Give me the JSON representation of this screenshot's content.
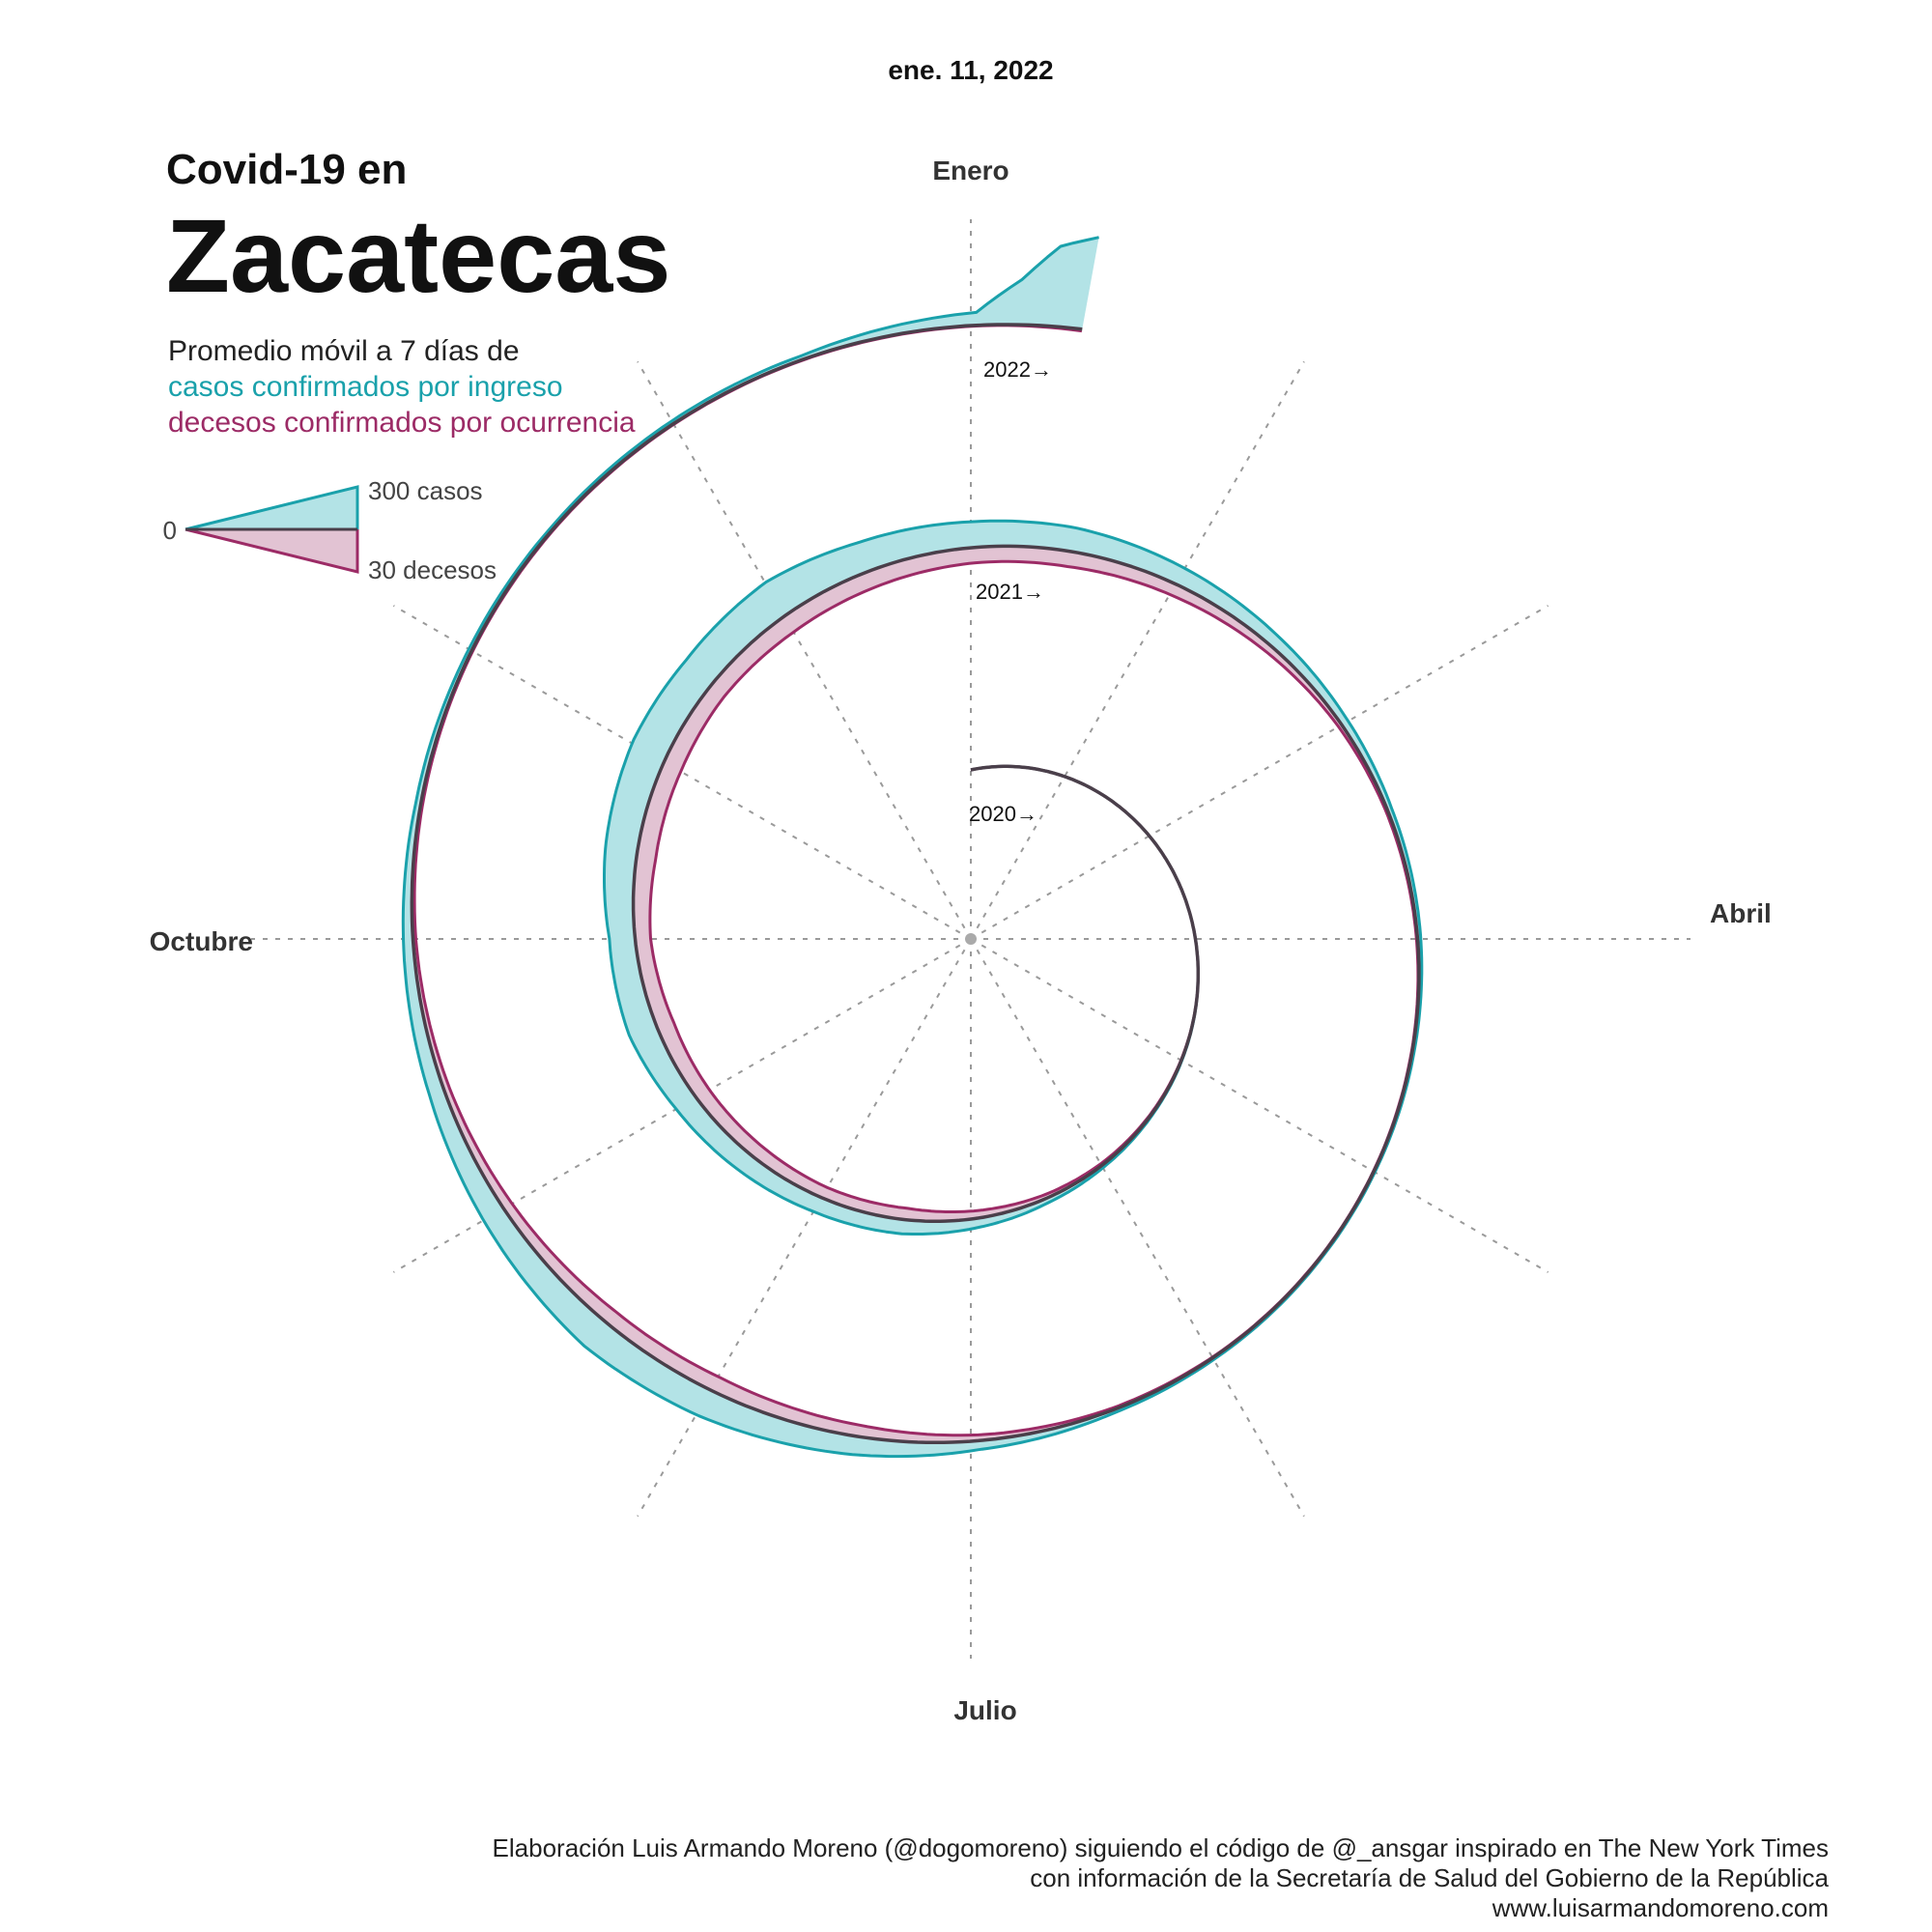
{
  "header": {
    "date": "ene. 11, 2022",
    "title_prefix": "Covid-19 en",
    "title_state": "Zacatecas",
    "subtitle": "Promedio móvil a 7 días de",
    "subtitle_cases": "casos confirmados por ingreso",
    "subtitle_deaths": "decesos confirmados por ocurrencia"
  },
  "legend": {
    "zero": "0",
    "cases": "300 casos",
    "deaths": "30 decesos"
  },
  "credits": {
    "line1": "Elaboración Luis Armando Moreno (@dogomoreno) siguiendo el código de @_ansgar inspirado en The New York Times",
    "line2": "con información de la Secretaría de Salud del Gobierno de la República",
    "line3": "www.luisarmandomoreno.com"
  },
  "colors": {
    "cases_fill": "#b3e3e6",
    "cases_line": "#1aa1ab",
    "deaths_fill": "#e2c3d3",
    "deaths_line": "#9c2b66",
    "baseline": "#4a3f4a",
    "grid": "#9a9a9a"
  },
  "chart_data": {
    "type": "area",
    "layout": "polar-spiral",
    "title": "Zacatecas",
    "date": "ene. 11, 2022",
    "months": [
      "Enero",
      "Abril",
      "Julio",
      "Octubre"
    ],
    "year_labels": [
      "2020→",
      "2021→",
      "2022→"
    ],
    "scale": {
      "cases": 300,
      "deaths": 30
    },
    "series": [
      {
        "name": "casos confirmados por ingreso",
        "x": [
          "2020-03-15",
          "2020-04-15",
          "2020-05-15",
          "2020-06-01",
          "2020-06-15",
          "2020-07-01",
          "2020-07-15",
          "2020-08-01",
          "2020-08-15",
          "2020-09-01",
          "2020-09-15",
          "2020-10-01",
          "2020-10-15",
          "2020-11-01",
          "2020-11-15",
          "2020-12-01",
          "2020-12-15",
          "2021-01-01",
          "2021-01-15",
          "2021-02-01",
          "2021-02-15",
          "2021-03-01",
          "2021-03-15",
          "2021-04-01",
          "2021-04-15",
          "2021-05-01",
          "2021-05-15",
          "2021-06-01",
          "2021-06-15",
          "2021-07-01",
          "2021-07-15",
          "2021-08-01",
          "2021-08-15",
          "2021-09-01",
          "2021-09-15",
          "2021-10-01",
          "2021-10-15",
          "2021-11-01",
          "2021-11-15",
          "2021-12-01",
          "2021-12-15",
          "2022-01-01",
          "2022-01-05",
          "2022-01-08",
          "2022-01-11"
        ],
        "values": [
          0,
          0,
          3,
          8,
          15,
          30,
          45,
          50,
          60,
          72,
          90,
          80,
          100,
          115,
          110,
          120,
          95,
          80,
          75,
          55,
          38,
          24,
          14,
          10,
          6,
          4,
          4,
          6,
          10,
          28,
          58,
          88,
          100,
          72,
          48,
          30,
          16,
          10,
          8,
          10,
          12,
          40,
          140,
          250,
          290
        ]
      },
      {
        "name": "decesos confirmados por ocurrencia",
        "x": [
          "2020-03-15",
          "2020-04-15",
          "2020-05-15",
          "2020-06-01",
          "2020-06-15",
          "2020-07-01",
          "2020-07-15",
          "2020-08-01",
          "2020-08-15",
          "2020-09-01",
          "2020-09-15",
          "2020-10-01",
          "2020-10-15",
          "2020-11-01",
          "2020-11-15",
          "2020-12-01",
          "2020-12-15",
          "2021-01-01",
          "2021-01-15",
          "2021-02-01",
          "2021-02-15",
          "2021-03-01",
          "2021-03-15",
          "2021-04-01",
          "2021-04-15",
          "2021-05-01",
          "2021-05-15",
          "2021-06-01",
          "2021-06-15",
          "2021-07-01",
          "2021-07-15",
          "2021-08-01",
          "2021-08-15",
          "2021-09-01",
          "2021-09-15",
          "2021-10-01",
          "2021-10-15",
          "2021-11-01",
          "2021-11-15",
          "2021-12-01",
          "2021-12-15",
          "2022-01-01",
          "2022-01-05",
          "2022-01-08",
          "2022-01-11"
        ],
        "values": [
          0,
          0,
          0.5,
          1,
          2,
          4,
          6,
          6,
          7,
          8,
          9,
          8,
          10,
          10,
          9,
          9.5,
          9,
          8,
          8,
          6,
          4,
          2,
          1,
          0.6,
          0.4,
          0.3,
          0.3,
          0.4,
          1,
          3,
          6,
          8,
          7.5,
          5,
          3,
          1.5,
          1,
          0.6,
          0.5,
          0.4,
          0.4,
          0.4,
          0.5,
          0.7,
          0.9
        ]
      }
    ]
  }
}
